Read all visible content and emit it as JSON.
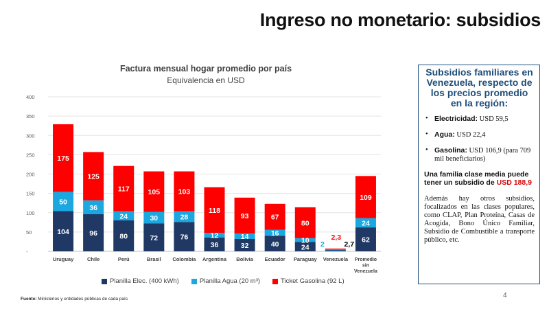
{
  "slide": {
    "title": "Ingreso no monetario: subsidios",
    "page_number": "4"
  },
  "source": {
    "label": "Fuente:",
    "text": "Ministerios y entidades públicas de cada país"
  },
  "colors": {
    "electricity": "#1f3864",
    "water": "#1ba7e0",
    "gasoline": "#ff0000",
    "outlier_water_label": "#1ba7e0",
    "outlier_gas_label": "#ff0000",
    "outlier_total_label": "#000000"
  },
  "chart_data": {
    "type": "bar",
    "stacked": true,
    "title": "Factura mensual hogar promedio por país",
    "subtitle": "Equivalencia en USD",
    "categories": [
      "Uruguay",
      "Chile",
      "Perú",
      "Brasil",
      "Colombia",
      "Argentina",
      "Bolivia",
      "Ecuador",
      "Paraguay",
      "Venezuela",
      "Promedio sin Venezuela"
    ],
    "series": [
      {
        "name": "Planilla Elec. (400 kWh)",
        "values": [
          104,
          96,
          80,
          72,
          76,
          36,
          32,
          40,
          24,
          2.7,
          62
        ]
      },
      {
        "name": "Planilla Agua (20 m³)",
        "values": [
          50,
          36,
          24,
          30,
          28,
          12,
          14,
          16,
          10,
          2,
          24
        ]
      },
      {
        "name": "Ticket Gasolina (92 L)",
        "values": [
          175,
          125,
          117,
          105,
          103,
          118,
          93,
          67,
          80,
          2.3,
          109
        ]
      }
    ],
    "data_labels": [
      [
        "104",
        "96",
        "80",
        "72",
        "76",
        "36",
        "32",
        "40",
        "24",
        "2,7",
        "62"
      ],
      [
        "50",
        "36",
        "24",
        "30",
        "28",
        "12",
        "14",
        "16",
        "10",
        "2",
        "24"
      ],
      [
        "175",
        "125",
        "117",
        "105",
        "103",
        "118",
        "93",
        "67",
        "80",
        "2,3",
        "109"
      ]
    ],
    "ylim": [
      0,
      400
    ],
    "yticks": [
      0,
      50,
      100,
      150,
      200,
      250,
      300,
      350,
      400
    ],
    "ytick_labels": [
      "-",
      "50",
      "100",
      "150",
      "200",
      "250",
      "300",
      "350",
      "400"
    ],
    "grid": true,
    "legend_position": "bottom"
  },
  "panel": {
    "title": "Subsidios familiares en Venezuela, respecto de los precios promedio en la región:",
    "items": [
      {
        "label": "Electricidad:",
        "value": "USD 59,5"
      },
      {
        "label": "Agua:",
        "value": "USD 22,4"
      },
      {
        "label": "Gasolina:",
        "value": "USD 106,9 (para 709 mil beneficiarios)"
      }
    ],
    "highlight": {
      "text": "Una familia clase media puede tener un subsidio de",
      "amount": "USD 188,9"
    },
    "body": "Además hay otros subsidios, focalizados en las clases populares, como CLAP, Plan Proteína, Casas de Acogida, Bono Único Familiar, Subsidio de Combustible a transporte público, etc."
  }
}
